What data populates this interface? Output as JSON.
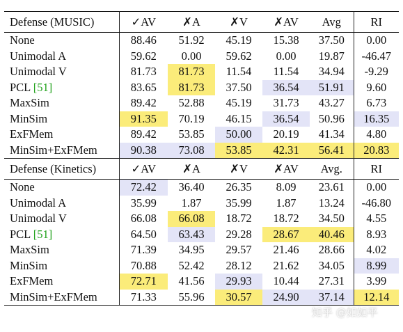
{
  "table": {
    "sections": [
      {
        "columns": [
          "Defense (MUSIC)",
          "✓AV",
          "✗A",
          "✗V",
          "✗AV",
          "Avg",
          "RI"
        ],
        "rows": [
          {
            "name": "None",
            "cells": [
              "88.46",
              "51.92",
              "45.19",
              "15.38",
              "37.50",
              "0.00"
            ],
            "hl": [
              "",
              "",
              "",
              "",
              "",
              ""
            ],
            "bold": [
              false,
              false,
              false,
              false,
              false,
              false
            ]
          },
          {
            "name": "Unimodal A",
            "cells": [
              "59.62",
              "0.00",
              "59.62",
              "0.00",
              "19.87",
              "-46.47"
            ],
            "hl": [
              "",
              "",
              "",
              "",
              "",
              ""
            ],
            "bold": [
              false,
              false,
              false,
              false,
              false,
              false
            ]
          },
          {
            "name": "Unimodal V",
            "cells": [
              "81.73",
              "81.73",
              "11.54",
              "11.54",
              "34.94",
              "-9.29"
            ],
            "hl": [
              "",
              "yellow",
              "",
              "",
              "",
              ""
            ],
            "bold": [
              false,
              true,
              false,
              false,
              false,
              false
            ]
          },
          {
            "name": "PCL ",
            "cite": "[51]",
            "cells": [
              "83.65",
              "81.73",
              "37.50",
              "36.54",
              "51.91",
              "9.60"
            ],
            "hl": [
              "",
              "yellow",
              "",
              "blue",
              "blue",
              ""
            ],
            "bold": [
              false,
              true,
              false,
              false,
              false,
              false
            ]
          },
          {
            "name": "MaxSim",
            "cells": [
              "89.42",
              "52.88",
              "45.19",
              "31.73",
              "43.27",
              "6.73"
            ],
            "hl": [
              "",
              "",
              "",
              "",
              "",
              ""
            ],
            "bold": [
              false,
              false,
              false,
              false,
              false,
              false
            ]
          },
          {
            "name": "MinSim",
            "cells": [
              "91.35",
              "70.19",
              "46.15",
              "36.54",
              "50.96",
              "16.35"
            ],
            "hl": [
              "yellow",
              "",
              "",
              "blue",
              "",
              "blue"
            ],
            "bold": [
              true,
              false,
              false,
              false,
              false,
              false
            ]
          },
          {
            "name": "ExFMem",
            "cells": [
              "89.42",
              "53.85",
              "50.00",
              "20.19",
              "41.34",
              "4.80"
            ],
            "hl": [
              "",
              "",
              "blue",
              "",
              "",
              ""
            ],
            "bold": [
              false,
              false,
              false,
              false,
              false,
              false
            ]
          },
          {
            "name": "MinSim+ExFMem",
            "cells": [
              "90.38",
              "73.08",
              "53.85",
              "42.31",
              "56.41",
              "20.83"
            ],
            "hl": [
              "blue",
              "blue",
              "yellow",
              "yellow",
              "yellow",
              "yellow"
            ],
            "bold": [
              false,
              false,
              true,
              true,
              true,
              true
            ]
          }
        ]
      },
      {
        "columns": [
          "Defense (Kinetics)",
          "✓AV",
          "✗A",
          "✗V",
          "✗AV",
          "Avg.",
          "RI"
        ],
        "rows": [
          {
            "name": "None",
            "cells": [
              "72.42",
              "36.40",
              "26.35",
              "8.09",
              "23.61",
              "0.00"
            ],
            "hl": [
              "blue",
              "",
              "",
              "",
              "",
              ""
            ],
            "bold": [
              false,
              false,
              false,
              false,
              false,
              false
            ]
          },
          {
            "name": "Unimodal A",
            "cells": [
              "35.99",
              "1.87",
              "35.99",
              "1.87",
              "13.24",
              "-46.80"
            ],
            "hl": [
              "",
              "",
              "",
              "",
              "",
              ""
            ],
            "bold": [
              false,
              false,
              false,
              false,
              false,
              false
            ]
          },
          {
            "name": "Unimodal V",
            "cells": [
              "66.08",
              "66.08",
              "18.72",
              "18.72",
              "34.50",
              "4.55"
            ],
            "hl": [
              "",
              "yellow",
              "",
              "",
              "",
              ""
            ],
            "bold": [
              false,
              true,
              false,
              false,
              false,
              false
            ]
          },
          {
            "name": "PCL ",
            "cite": "[51]",
            "cells": [
              "64.50",
              "63.43",
              "29.28",
              "28.67",
              "40.46",
              "8.93"
            ],
            "hl": [
              "",
              "blue",
              "",
              "yellow",
              "yellow",
              ""
            ],
            "bold": [
              false,
              false,
              false,
              true,
              true,
              false
            ]
          },
          {
            "name": "MaxSim",
            "cells": [
              "71.39",
              "34.95",
              "29.57",
              "21.46",
              "28.66",
              "4.02"
            ],
            "hl": [
              "",
              "",
              "",
              "",
              "",
              ""
            ],
            "bold": [
              false,
              false,
              false,
              false,
              false,
              false
            ]
          },
          {
            "name": "MinSim",
            "cells": [
              "70.88",
              "52.42",
              "28.12",
              "21.62",
              "34.05",
              "8.99"
            ],
            "hl": [
              "",
              "",
              "",
              "",
              "",
              "blue"
            ],
            "bold": [
              false,
              false,
              false,
              false,
              false,
              false
            ]
          },
          {
            "name": "ExFMem",
            "cells": [
              "72.71",
              "41.56",
              "29.93",
              "10.44",
              "27.31",
              "3.99"
            ],
            "hl": [
              "yellow",
              "",
              "blue",
              "",
              "",
              ""
            ],
            "bold": [
              true,
              false,
              false,
              false,
              false,
              false
            ]
          },
          {
            "name": "MinSim+ExFMem",
            "cells": [
              "71.33",
              "55.96",
              "30.57",
              "24.90",
              "37.14",
              "12.14"
            ],
            "hl": [
              "",
              "",
              "yellow",
              "blue",
              "blue",
              "yellow"
            ],
            "bold": [
              false,
              false,
              true,
              false,
              false,
              true
            ]
          }
        ]
      }
    ]
  },
  "watermark": "知乎 @如如平"
}
